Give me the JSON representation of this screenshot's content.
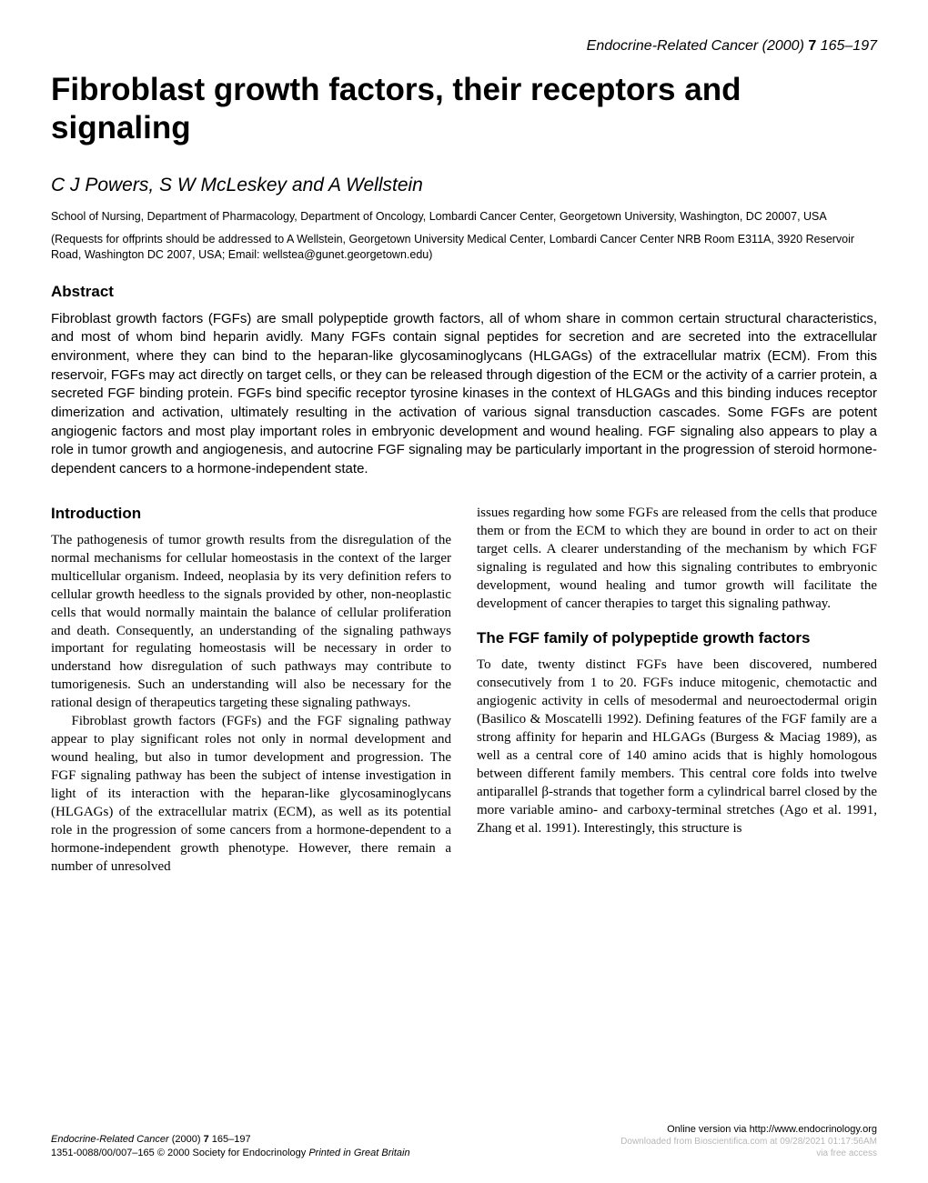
{
  "header": {
    "journal": "Endocrine-Related Cancer",
    "year": "(2000)",
    "volume": "7",
    "pages": "165–197"
  },
  "title": "Fibroblast growth factors, their receptors and signaling",
  "authors": "C J Powers, S W McLeskey and A Wellstein",
  "affiliation": "School of Nursing, Department of Pharmacology, Department of Oncology, Lombardi Cancer Center, Georgetown University, Washington, DC 20007, USA",
  "correspondence": "(Requests for offprints should be addressed to A Wellstein, Georgetown University Medical Center, Lombardi Cancer Center NRB Room E311A, 3920 Reservoir Road, Washington DC 2007, USA; Email: wellstea@gunet.georgetown.edu)",
  "abstract": {
    "heading": "Abstract",
    "text": "Fibroblast growth factors (FGFs) are small polypeptide growth factors, all of whom share in common certain structural characteristics, and most of whom bind heparin avidly. Many FGFs contain signal peptides for secretion and are secreted into the extracellular environment, where they can bind to the heparan-like glycosaminoglycans (HLGAGs) of the extracellular matrix (ECM). From this reservoir, FGFs may act directly on target cells, or they can be released through digestion of the ECM or the activity of a carrier protein, a secreted FGF binding protein. FGFs bind specific receptor tyrosine kinases in the context of HLGAGs and this binding induces receptor dimerization and activation, ultimately resulting in the activation of various signal transduction cascades. Some FGFs are potent angiogenic factors and most play important roles in embryonic development and wound healing. FGF signaling also appears to play a role in tumor growth and angiogenesis, and autocrine FGF signaling may be particularly important in the progression of steroid hormone-dependent cancers to a hormone-independent state."
  },
  "sections": {
    "intro_head": "Introduction",
    "intro_p1": "The pathogenesis of tumor growth results from the disregulation of the normal mechanisms for cellular homeostasis in the context of the larger multicellular organism. Indeed, neoplasia by its very definition refers to cellular growth heedless to the signals provided by other, non-neoplastic cells that would normally maintain the balance of cellular proliferation and death. Consequently, an understanding of the signaling pathways important for regulating homeostasis will be necessary in order to understand how disregulation of such pathways may contribute to tumorigenesis. Such an understanding will also be necessary for the rational design of therapeutics targeting these signaling pathways.",
    "intro_p2": "Fibroblast growth factors (FGFs) and the FGF signaling pathway appear to play significant roles not only in normal development and wound healing, but also in tumor development and progression. The FGF signaling pathway has been the subject of intense investigation in light of its interaction with the heparan-like glycosaminoglycans (HLGAGs) of the extracellular matrix (ECM), as well as its potential role in the progression of some cancers from a hormone-dependent to a hormone-independent growth phenotype. However, there remain a number of unresolved",
    "right_p1": "issues regarding how some FGFs are released from the cells that produce them or from the ECM to which they are bound in order to act on their target cells. A clearer understanding of the mechanism by which FGF signaling is regulated and how this signaling contributes to embryonic development, wound healing and tumor growth will facilitate the development of cancer therapies to target this signaling pathway.",
    "family_head": "The FGF family of polypeptide growth factors",
    "family_p1": "To date, twenty distinct FGFs have been discovered, numbered consecutively from 1 to 20. FGFs induce mitogenic, chemotactic and angiogenic activity in cells of mesodermal and neuroectodermal origin (Basilico & Moscatelli 1992). Defining features of the FGF family are a strong affinity for heparin and HLGAGs (Burgess & Maciag 1989), as well as a central core of 140 amino acids that is highly homologous between different family members. This central core folds into twelve antiparallel β-strands that together form a cylindrical barrel closed by the more variable amino- and carboxy-terminal stretches (Ago et al. 1991, Zhang et al. 1991). Interestingly, this structure is"
  },
  "footer": {
    "left_journal": "Endocrine-Related Cancer",
    "left_year": "(2000)",
    "left_volume": "7",
    "left_pages": "165–197",
    "issn_line": "1351-0088/00/007–165   © 2000 Society for Endocrinology ",
    "printed": "Printed in Great Britain",
    "online": "Online version via http://www.endocrinology.org",
    "download": "Downloaded from Bioscientifica.com at 09/28/2021 01:17:56AM",
    "access": "via free access"
  }
}
